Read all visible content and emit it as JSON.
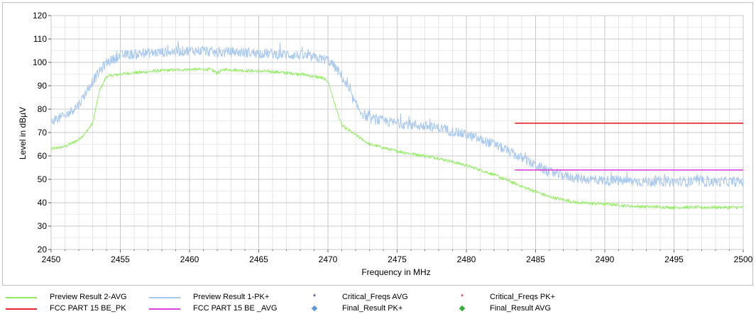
{
  "chart_data": {
    "type": "line",
    "title": "",
    "xlabel": "Frequency in MHz",
    "ylabel": "Level in dBµV",
    "xlim": [
      2450,
      2500
    ],
    "ylim": [
      20,
      120
    ],
    "x_ticks": [
      2450,
      2455,
      2460,
      2465,
      2470,
      2475,
      2480,
      2485,
      2490,
      2495,
      2500
    ],
    "y_ticks": [
      20,
      30,
      40,
      50,
      60,
      70,
      80,
      90,
      100,
      110,
      120
    ],
    "grid": true,
    "legend_position": "bottom",
    "series": [
      {
        "name": "Preview Result 2-AVG",
        "color": "#90ee60",
        "x": [
          2450,
          2451,
          2452,
          2452.5,
          2453,
          2453.5,
          2454,
          2455,
          2458,
          2460,
          2461.5,
          2462,
          2462.5,
          2464,
          2466,
          2468,
          2469.5,
          2470,
          2470.5,
          2471,
          2472,
          2473,
          2475,
          2478,
          2480,
          2482,
          2484,
          2486,
          2488,
          2490,
          2492,
          2495,
          2500
        ],
        "values": [
          63,
          64,
          67,
          70,
          74,
          88,
          94,
          95,
          96.5,
          97,
          97,
          95.5,
          97,
          96.5,
          96,
          95,
          93.5,
          92,
          82,
          73,
          69,
          65,
          62,
          59,
          56,
          52,
          47,
          42.5,
          40,
          39.5,
          38.5,
          38,
          38
        ],
        "noise": 0.6
      },
      {
        "name": "Preview Result 1-PK+",
        "color": "#a8c8f0",
        "x": [
          2450,
          2451,
          2452,
          2452.5,
          2453,
          2454,
          2455,
          2457,
          2460,
          2461,
          2462,
          2463,
          2465,
          2468,
          2470,
          2470.5,
          2471,
          2471.5,
          2472,
          2472.5,
          2473,
          2475,
          2478,
          2480,
          2482,
          2484,
          2486,
          2488,
          2490,
          2493,
          2495,
          2500
        ],
        "values": [
          75,
          77,
          82,
          87,
          92,
          100,
          103,
          104,
          105,
          105,
          104,
          104.5,
          104,
          103,
          101,
          98,
          94,
          88,
          82,
          78,
          76,
          74,
          72,
          69,
          65,
          59,
          53,
          50.5,
          49.5,
          49,
          49,
          49
        ],
        "noise": 2.2
      },
      {
        "name": "FCC PART 15 BE_PK",
        "color": "#e8202a",
        "x": [
          2483.5,
          2500
        ],
        "values": [
          74,
          74
        ]
      },
      {
        "name": "FCC PART 15 BE _AVG",
        "color": "#e040e0",
        "x": [
          2483.5,
          2500
        ],
        "values": [
          54,
          54
        ]
      }
    ]
  },
  "legend": {
    "items": [
      {
        "label": "Preview Result 2-AVG",
        "kind": "line",
        "color": "#90ee60",
        "col": 0,
        "row": 0
      },
      {
        "label": "FCC PART 15 BE_PK",
        "kind": "line",
        "color": "#e8202a",
        "col": 0,
        "row": 1
      },
      {
        "label": "Preview Result 1-PK+",
        "kind": "line",
        "color": "#a8c8f0",
        "col": 1,
        "row": 0
      },
      {
        "label": "FCC PART 15 BE _AVG",
        "kind": "line",
        "color": "#e040e0",
        "col": 1,
        "row": 1
      },
      {
        "label": "Critical_Freqs AVG",
        "kind": "marker",
        "marker": "*",
        "color": "#1a1aa0",
        "col": 2,
        "row": 0
      },
      {
        "label": "Final_Result PK+",
        "kind": "marker",
        "marker": "◆",
        "color": "#5a9ad8",
        "col": 2,
        "row": 1
      },
      {
        "label": "Critical_Freqs PK+",
        "kind": "marker",
        "marker": "*",
        "color": "#e02020",
        "col": 3,
        "row": 0
      },
      {
        "label": "Final_Result AVG",
        "kind": "marker",
        "marker": "◆",
        "color": "#30b030",
        "col": 3,
        "row": 1
      }
    ]
  }
}
